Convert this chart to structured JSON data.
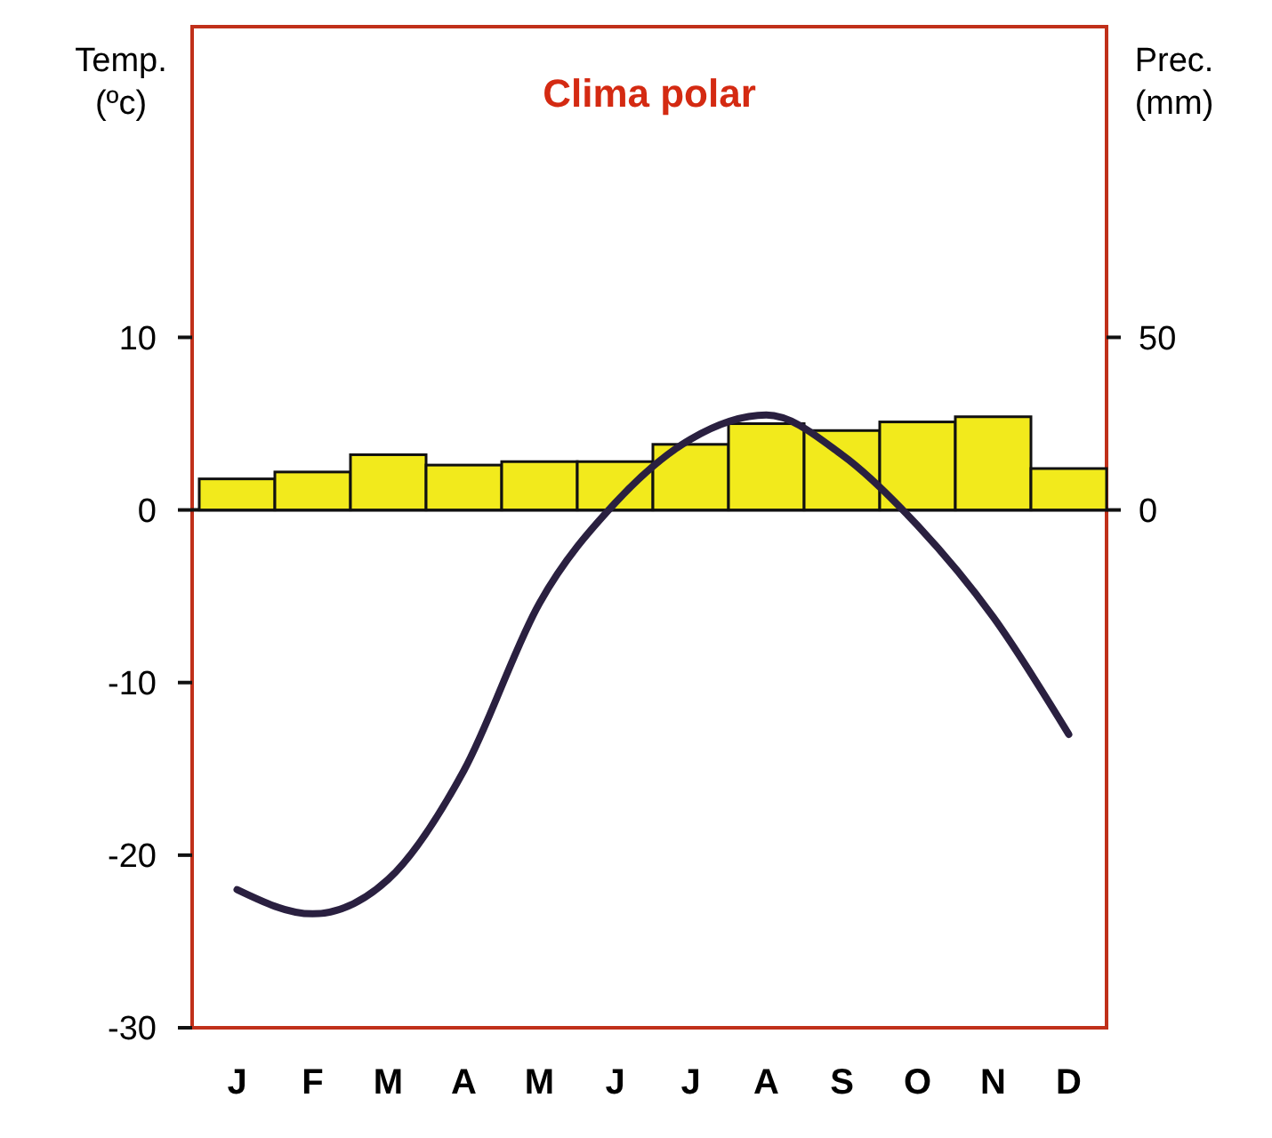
{
  "chart_data": {
    "type": "bar",
    "title": "Clima polar",
    "ylabel": "Temp. (ºc)",
    "y2label": "Prec. (mm)",
    "categories": [
      "J",
      "F",
      "M",
      "A",
      "M",
      "J",
      "J",
      "A",
      "S",
      "O",
      "N",
      "D"
    ],
    "series": [
      {
        "axis": "y2",
        "color": "#f2ea1c",
        "values": [
          9,
          11,
          16,
          13,
          14,
          14,
          19,
          25,
          23,
          25.5,
          27,
          12
        ]
      },
      {
        "type": "line",
        "axis": "y",
        "color": "#2a2040",
        "values": [
          -22,
          -23.4,
          -21.4,
          -15.1,
          -5.4,
          0.4,
          4.1,
          5.5,
          3.2,
          -0.9,
          -6.2,
          -13
        ]
      }
    ],
    "ylim": [
      -30,
      28
    ],
    "yticks": [
      10,
      0,
      -10,
      -20,
      -30
    ],
    "y2lim": [
      -150,
      140
    ],
    "y2ticks": [
      0,
      50
    ]
  }
}
